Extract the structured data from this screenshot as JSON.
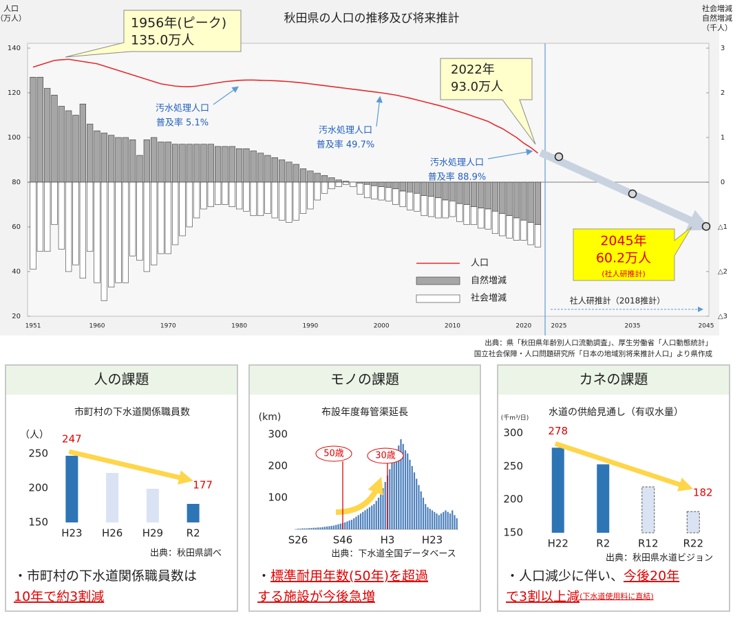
{
  "chart_data": [
    {
      "type": "combo",
      "title": "秋田県の人口の推移及び将来推計",
      "ylabel": [
        "人口",
        "（万人）"
      ],
      "y2label": [
        "社会増減",
        "自然増減",
        "（千人）"
      ],
      "x": [
        1951,
        1952,
        1953,
        1954,
        1955,
        1956,
        1957,
        1958,
        1959,
        1960,
        1961,
        1962,
        1963,
        1964,
        1965,
        1966,
        1967,
        1968,
        1969,
        1970,
        1971,
        1972,
        1973,
        1974,
        1975,
        1976,
        1977,
        1978,
        1979,
        1980,
        1981,
        1982,
        1983,
        1984,
        1985,
        1986,
        1987,
        1988,
        1989,
        1990,
        1991,
        1992,
        1993,
        1994,
        1995,
        1996,
        1997,
        1998,
        1999,
        2000,
        2001,
        2002,
        2003,
        2004,
        2005,
        2006,
        2007,
        2008,
        2009,
        2010,
        2011,
        2012,
        2013,
        2014,
        2015,
        2016,
        2017,
        2018,
        2019,
        2020,
        2021,
        2022
      ],
      "xticks": [
        1951,
        1960,
        1970,
        1980,
        1990,
        2000,
        2010,
        2020
      ],
      "ylim": [
        20,
        140
      ],
      "yticks": [
        20,
        40,
        60,
        80,
        100,
        120,
        140
      ],
      "y2lim": [
        -3,
        3
      ],
      "y2ticks": [
        3,
        2,
        1,
        0,
        {
          "value": -1,
          "label": "△1"
        },
        {
          "value": -2,
          "label": "△2"
        },
        {
          "value": -3,
          "label": "△3"
        }
      ],
      "series": [
        {
          "name": "人口",
          "color": "#e8282b",
          "values": [
            131.5,
            132.5,
            133.5,
            134.5,
            134.8,
            135.0,
            134.5,
            134.0,
            133.5,
            133.0,
            132.0,
            131.0,
            130.0,
            129.0,
            128.0,
            127.0,
            126.0,
            125.0,
            124.0,
            123.5,
            123.0,
            122.8,
            122.7,
            123.0,
            123.5,
            124.0,
            124.5,
            125.0,
            125.3,
            125.6,
            125.7,
            125.7,
            125.6,
            125.5,
            125.4,
            125.2,
            125.0,
            124.7,
            124.4,
            124.0,
            123.6,
            123.2,
            122.8,
            122.4,
            122.0,
            121.6,
            121.2,
            120.8,
            120.4,
            120.0,
            119.5,
            119.0,
            118.3,
            117.6,
            116.8,
            116.0,
            115.2,
            114.4,
            113.5,
            112.5,
            111.5,
            110.5,
            109.4,
            108.3,
            107.2,
            105.5,
            104.0,
            102.0,
            100.0,
            97.5,
            95.5,
            93.0
          ]
        },
        {
          "name": "自然増減",
          "color": "#a6a6a6",
          "axis": "y2",
          "values": [
            2.35,
            2.35,
            2.1,
            1.95,
            1.7,
            1.6,
            1.5,
            1.75,
            1.3,
            1.15,
            1.1,
            1.05,
            1.0,
            1.0,
            0.95,
            0.6,
            0.95,
            1.0,
            0.9,
            0.9,
            0.85,
            0.85,
            0.85,
            0.85,
            0.85,
            0.85,
            0.8,
            0.8,
            0.8,
            0.75,
            0.75,
            0.7,
            0.65,
            0.6,
            0.55,
            0.5,
            0.45,
            0.4,
            0.3,
            0.25,
            0.2,
            0.15,
            0.1,
            0.05,
            0.02,
            0,
            -0.02,
            -0.05,
            -0.08,
            -0.1,
            -0.12,
            -0.15,
            -0.2,
            -0.22,
            -0.25,
            -0.3,
            -0.32,
            -0.35,
            -0.4,
            -0.42,
            -0.48,
            -0.5,
            -0.55,
            -0.58,
            -0.6,
            -0.65,
            -0.7,
            -0.75,
            -0.8,
            -0.85,
            -0.9,
            -0.95
          ]
        },
        {
          "name": "社会増減",
          "color": "#ffffff",
          "axis": "y2",
          "values": [
            -1.95,
            -1.55,
            -1.55,
            -0.95,
            -1.5,
            -2.0,
            -1.85,
            -2.15,
            -1.55,
            -2.25,
            -2.65,
            -2.35,
            -2.25,
            -2.25,
            -1.65,
            -1.75,
            -2.0,
            -1.85,
            -1.6,
            -1.6,
            -1.4,
            -1.2,
            -1.0,
            -0.8,
            -0.6,
            -0.55,
            -0.5,
            -0.5,
            -0.55,
            -0.6,
            -0.65,
            -0.75,
            -0.75,
            -0.7,
            -0.8,
            -0.85,
            -0.9,
            -0.85,
            -0.7,
            -0.6,
            -0.4,
            -0.25,
            -0.15,
            -0.1,
            -0.05,
            -0.1,
            -0.25,
            -0.3,
            -0.3,
            -0.3,
            -0.3,
            -0.35,
            -0.35,
            -0.4,
            -0.4,
            -0.45,
            -0.45,
            -0.45,
            -0.4,
            -0.35,
            -0.4,
            -0.45,
            -0.4,
            -0.45,
            -0.45,
            -0.5,
            -0.5,
            -0.5,
            -0.5,
            -0.45,
            -0.5,
            -0.5
          ]
        }
      ],
      "projection": {
        "x": [
          2025,
          2035,
          2045
        ],
        "values": [
          91.4,
          74.8,
          60.2
        ]
      },
      "projection_label": "社人研推計（2018推計）",
      "annotations": [
        {
          "lines": [
            "1956年(ピーク)",
            "135.0万人"
          ]
        },
        {
          "lines": [
            "2022年",
            "93.0万人"
          ]
        },
        {
          "lines": [
            "2045年",
            "60.2万人",
            "(社人研推計)"
          ]
        },
        {
          "lines": [
            "汚水処理人口",
            "普及率 5.1%"
          ]
        },
        {
          "lines": [
            "汚水処理人口",
            "普及率 49.7%"
          ]
        },
        {
          "lines": [
            "汚水処理人口",
            "普及率 88.9%"
          ]
        }
      ],
      "source": [
        "出典：県「秋田県年齢別人口流動調査」、厚生労働省「人口動態統計」",
        "国立社会保障・人口問題研究所「日本の地域別将来推計人口」より県作成"
      ]
    },
    {
      "type": "bar",
      "title": "市町村の下水道関係職員数",
      "ylabel": "（人）",
      "categories": [
        "H23",
        "H26",
        "H29",
        "R2"
      ],
      "values": [
        247,
        222,
        199,
        177
      ],
      "colors": [
        "#2e75b6",
        "#dae3f3",
        "#dae3f3",
        "#2e75b6"
      ],
      "ylim": [
        150,
        250
      ],
      "yticks": [
        150,
        200,
        250
      ],
      "source": "出典：秋田県調べ"
    },
    {
      "type": "bar",
      "title": "布設年度毎管渠延長",
      "ylabel": "(km)",
      "categories": [
        "S26",
        null,
        null,
        null,
        null,
        null,
        null,
        null,
        null,
        null,
        null,
        null,
        null,
        null,
        null,
        null,
        null,
        null,
        null,
        null,
        "S46",
        null,
        null,
        null,
        null,
        null,
        null,
        null,
        null,
        null,
        null,
        null,
        null,
        null,
        null,
        null,
        null,
        null,
        null,
        null,
        "H3",
        null,
        null,
        null,
        null,
        null,
        null,
        null,
        null,
        null,
        null,
        null,
        null,
        null,
        null,
        null,
        null,
        null,
        null,
        null,
        "H23",
        null,
        null,
        null,
        null,
        null,
        null,
        null,
        null,
        null,
        null,
        null
      ],
      "values": [
        2,
        2,
        3,
        3,
        3,
        4,
        4,
        5,
        5,
        6,
        6,
        7,
        8,
        9,
        10,
        11,
        12,
        14,
        16,
        18,
        20,
        22,
        25,
        28,
        30,
        35,
        40,
        45,
        50,
        55,
        60,
        65,
        70,
        75,
        80,
        90,
        100,
        110,
        130,
        150,
        170,
        190,
        210,
        230,
        250,
        265,
        285,
        270,
        250,
        240,
        220,
        200,
        180,
        160,
        140,
        120,
        100,
        80,
        70,
        65,
        60,
        55,
        50,
        45,
        50,
        55,
        60,
        55,
        50,
        60,
        45,
        35
      ],
      "color": "#4a7ebb",
      "ylim": [
        0,
        300
      ],
      "yticks": [
        100,
        200,
        300
      ],
      "annotations": [
        "50歳",
        "30歳"
      ],
      "source": "出典：下水道全国データベース"
    },
    {
      "type": "bar",
      "title": "水道の供給見通し（有収水量）",
      "ylabel": "(千m³/日)",
      "categories": [
        "H22",
        "R2",
        "R12",
        "R22"
      ],
      "values": [
        278,
        253,
        219,
        182
      ],
      "colors": [
        "#2e75b6",
        "#2e75b6",
        "#dae3f3",
        "#dae3f3"
      ],
      "dashed": [
        false,
        false,
        true,
        true
      ],
      "ylim": [
        150,
        300
      ],
      "yticks": [
        150,
        200,
        250,
        300
      ],
      "source": "出典：秋田県水道ビジョン"
    }
  ],
  "panels": [
    {
      "heading": "人の課題",
      "note": [
        [
          {
            "text": "・市町村の下水道関係職員数は"
          }
        ],
        [
          {
            "text": "10年で約3割減",
            "color": "#e00000"
          }
        ]
      ]
    },
    {
      "heading": "モノの課題",
      "note": [
        [
          {
            "text": "・"
          },
          {
            "text": "標準耐用年数(50年)を超過",
            "color": "#e00000"
          }
        ],
        [
          {
            "text": "する施設が今後急増",
            "color": "#e00000"
          }
        ]
      ]
    },
    {
      "heading": "カネの課題",
      "note": [
        [
          {
            "text": "・人口減少に伴い、"
          },
          {
            "text": "今後20年",
            "color": "#e00000"
          }
        ],
        [
          {
            "text": "で3割以上減",
            "color": "#e00000"
          },
          {
            "text": "(下水道使用料に直結)",
            "color": "#e00000",
            "small": true
          }
        ]
      ]
    }
  ]
}
